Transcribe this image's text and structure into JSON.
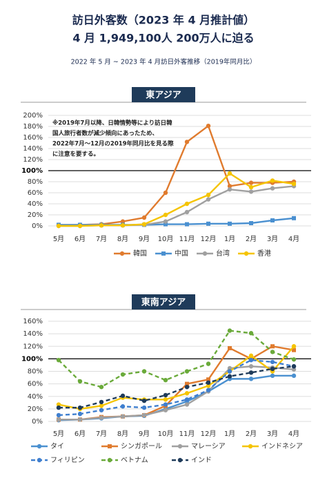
{
  "header": {
    "title": [
      "訪日外客数（2023 年 4 月推計値）",
      "4 月 1,949,100人 200万人に迫る"
    ],
    "subtitle": "2022 年 5 月 ~ 2023 年 4 月訪日外客推移（2019年同月比）"
  },
  "chart_data": [
    {
      "type": "line",
      "title": "東アジア",
      "annotation": [
        "※2019年7月以降、日韓情勢等により訪日韓",
        "国人旅行者数が減少傾向にあったため、",
        "2022年7月〜12月の2019年同月比を見る際",
        "に注意を要する。"
      ],
      "categories": [
        "5月",
        "6月",
        "7月",
        "8月",
        "9月",
        "10月",
        "11月",
        "12月",
        "1月",
        "2月",
        "3月",
        "4月"
      ],
      "series": [
        {
          "name": "韓国",
          "color": "#e07b2e",
          "marker": "circle",
          "values": [
            2,
            2,
            3,
            8,
            15,
            60,
            152,
            181,
            72,
            78,
            78,
            80
          ]
        },
        {
          "name": "中国",
          "color": "#4a90d0",
          "marker": "square",
          "values": [
            2,
            2,
            2,
            2,
            2,
            3,
            3,
            4,
            4,
            5,
            10,
            14
          ]
        },
        {
          "name": "台湾",
          "color": "#a0a0a0",
          "marker": "circle",
          "values": [
            0,
            0,
            1,
            1,
            2,
            8,
            25,
            48,
            66,
            62,
            68,
            72
          ]
        },
        {
          "name": "香港",
          "color": "#f5c400",
          "marker": "circle",
          "values": [
            0,
            0,
            1,
            1,
            3,
            20,
            40,
            56,
            95,
            70,
            82,
            76
          ]
        }
      ],
      "ylim": [
        0,
        200
      ],
      "yticks": [
        {
          "value": 0,
          "label": "0%"
        },
        {
          "value": 20,
          "label": "20%"
        },
        {
          "value": 40,
          "label": "40%"
        },
        {
          "value": 60,
          "label": "60%"
        },
        {
          "value": 80,
          "label": "80%"
        },
        {
          "value": 100,
          "label": "100%"
        },
        {
          "value": 120,
          "label": "120%"
        },
        {
          "value": 140,
          "label": "140%"
        },
        {
          "value": 160,
          "label": "160%"
        },
        {
          "value": 180,
          "label": "180%"
        },
        {
          "value": 200,
          "label": "200%"
        }
      ],
      "reference_line": 100,
      "grid": true
    },
    {
      "type": "line",
      "title": "東南アジア",
      "categories": [
        "5月",
        "6月",
        "7月",
        "8月",
        "9月",
        "10月",
        "11月",
        "12月",
        "1月",
        "2月",
        "3月",
        "4月"
      ],
      "series": [
        {
          "name": "タイ",
          "color": "#4a90d0",
          "marker": "circle",
          "dash": false,
          "values": [
            2,
            3,
            5,
            8,
            9,
            20,
            32,
            48,
            68,
            68,
            73,
            73
          ]
        },
        {
          "name": "シンガポール",
          "color": "#e07b2e",
          "marker": "square",
          "dash": false,
          "values": [
            3,
            3,
            7,
            8,
            10,
            25,
            60,
            67,
            117,
            100,
            120,
            114
          ]
        },
        {
          "name": "マレーシア",
          "color": "#a0a0a0",
          "marker": "circle",
          "dash": false,
          "values": [
            3,
            3,
            6,
            8,
            10,
            18,
            27,
            48,
            85,
            88,
            86,
            83
          ]
        },
        {
          "name": "インドネシア",
          "color": "#f5c400",
          "marker": "circle",
          "dash": false,
          "values": [
            27,
            20,
            25,
            38,
            35,
            35,
            45,
            57,
            80,
            105,
            80,
            120
          ]
        },
        {
          "name": "フィリピン",
          "color": "#3f7fcf",
          "marker": "circle",
          "dash": true,
          "values": [
            10,
            12,
            18,
            24,
            22,
            27,
            35,
            50,
            80,
            98,
            95,
            88
          ]
        },
        {
          "name": "ベトナム",
          "color": "#6aaa3a",
          "marker": "circle",
          "dash": true,
          "values": [
            98,
            64,
            55,
            75,
            80,
            66,
            80,
            92,
            145,
            141,
            111,
            99
          ]
        },
        {
          "name": "インド",
          "color": "#1f3b5a",
          "marker": "circle",
          "dash": true,
          "values": [
            22,
            22,
            31,
            41,
            33,
            42,
            55,
            62,
            72,
            78,
            84,
            88
          ]
        }
      ],
      "ylim": [
        0,
        160
      ],
      "yticks": [
        {
          "value": 0,
          "label": "0%"
        },
        {
          "value": 20,
          "label": "20%"
        },
        {
          "value": 40,
          "label": "40%"
        },
        {
          "value": 60,
          "label": "60%"
        },
        {
          "value": 80,
          "label": "80%"
        },
        {
          "value": 100,
          "label": "100%"
        },
        {
          "value": 120,
          "label": "120%"
        },
        {
          "value": 140,
          "label": "140%"
        },
        {
          "value": 160,
          "label": "160%"
        }
      ],
      "reference_line": 100,
      "grid": true
    }
  ]
}
